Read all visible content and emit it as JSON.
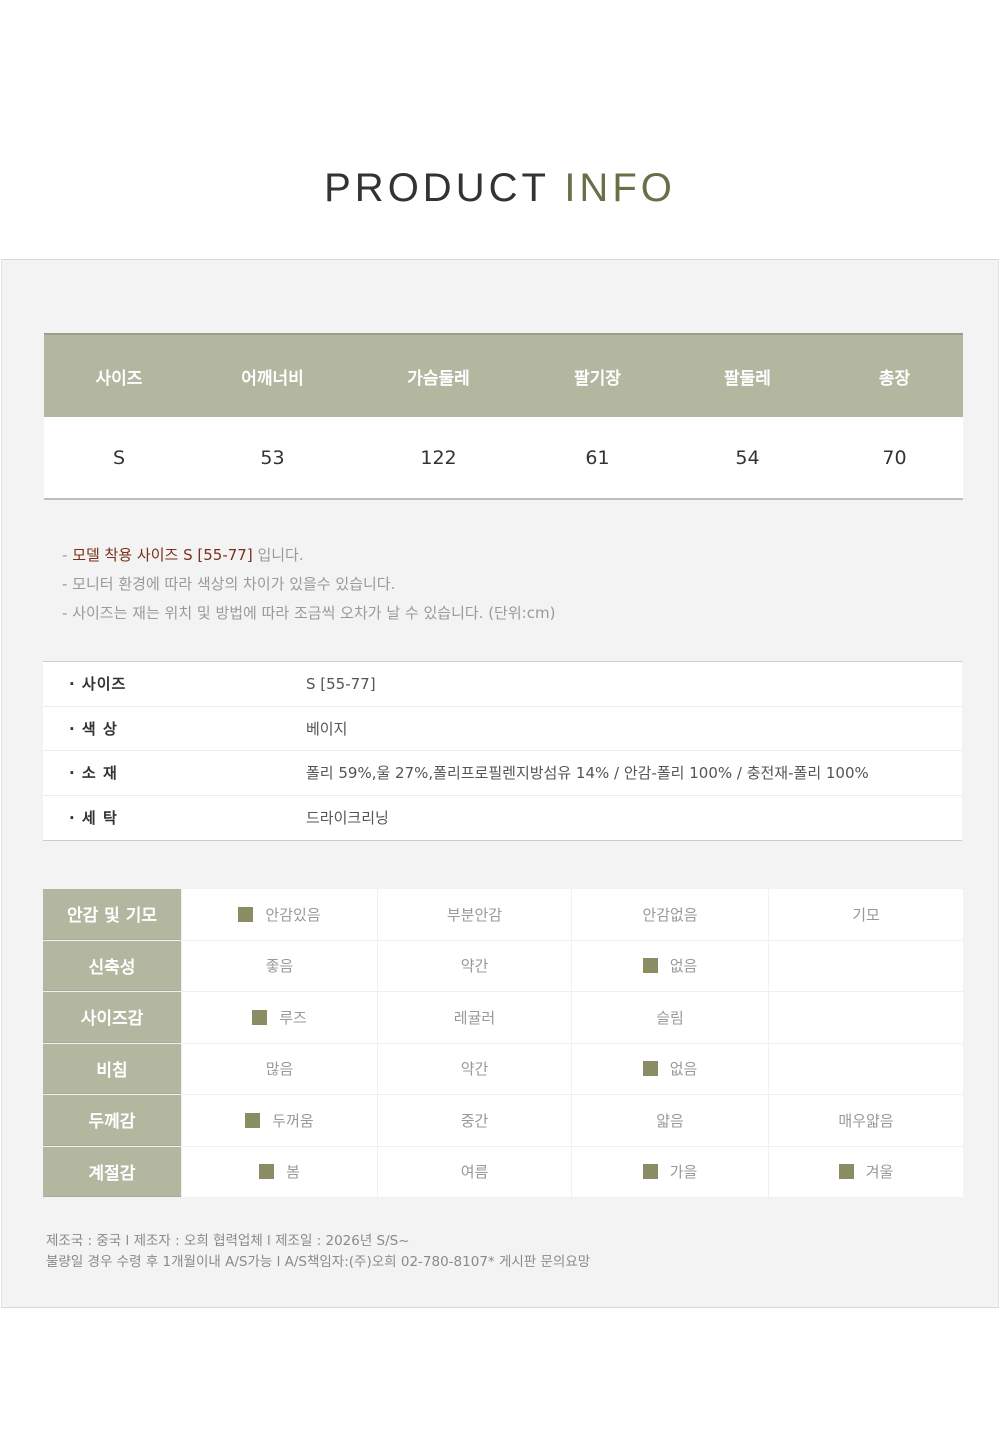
{
  "title": {
    "main": "PRODUCT",
    "accent": "INFO"
  },
  "size_table": {
    "headers": [
      "사이즈",
      "어깨너비",
      "가슴둘레",
      "팔기장",
      "팔둘레",
      "총장"
    ],
    "row": [
      "S",
      "53",
      "122",
      "61",
      "54",
      "70"
    ]
  },
  "notes": {
    "n1_prefix": "- ",
    "n1_highlight": "모델 착용 사이즈  S [55-77]",
    "n1_suffix": "  입니다.",
    "n2": "- 모니터 환경에 따라 색상의 차이가 있을수 있습니다.",
    "n3": "- 사이즈는 재는 위치 및 방법에 따라 조금씩 오차가 날 수 있습니다. (단위:cm)"
  },
  "info": [
    {
      "label": "·  사이즈",
      "value": "S [55-77]"
    },
    {
      "label": "·  색   상",
      "value": "베이지"
    },
    {
      "label": "·  소   재",
      "value": "폴리 59%,울 27%,폴리프로필렌지방섬유 14% / 안감-폴리 100% / 충전재-폴리 100%"
    },
    {
      "label": "·  세   탁",
      "value": "드라이크리닝"
    }
  ],
  "attributes": [
    {
      "label": "안감 및 기모",
      "options": [
        {
          "text": "안감있음",
          "checked": true
        },
        {
          "text": "부분안감",
          "checked": false
        },
        {
          "text": "안감없음",
          "checked": false
        },
        {
          "text": "기모",
          "checked": false
        }
      ]
    },
    {
      "label": "신축성",
      "options": [
        {
          "text": "좋음",
          "checked": false
        },
        {
          "text": "약간",
          "checked": false
        },
        {
          "text": "없음",
          "checked": true
        },
        {
          "text": "",
          "checked": false
        }
      ]
    },
    {
      "label": "사이즈감",
      "options": [
        {
          "text": "루즈",
          "checked": true
        },
        {
          "text": "레귤러",
          "checked": false
        },
        {
          "text": "슬림",
          "checked": false
        },
        {
          "text": "",
          "checked": false
        }
      ]
    },
    {
      "label": "비침",
      "options": [
        {
          "text": "많음",
          "checked": false
        },
        {
          "text": "약간",
          "checked": false
        },
        {
          "text": "없음",
          "checked": true
        },
        {
          "text": "",
          "checked": false
        }
      ]
    },
    {
      "label": "두께감",
      "options": [
        {
          "text": "두꺼움",
          "checked": true
        },
        {
          "text": "중간",
          "checked": false
        },
        {
          "text": "얇음",
          "checked": false
        },
        {
          "text": "매우얇음",
          "checked": false
        }
      ]
    },
    {
      "label": "계절감",
      "options": [
        {
          "text": "봄",
          "checked": true
        },
        {
          "text": "여름",
          "checked": false
        },
        {
          "text": "가을",
          "checked": true
        },
        {
          "text": "겨울",
          "checked": true
        }
      ]
    }
  ],
  "footer": {
    "line1": "제조국 :  중국  l  제조자 :  오희 협력업체  l  제조일 : 2026년 S/S~",
    "line2": "불량일 경우 수령 후 1개월이내 A/S가능  l  A/S책임자:(주)오희 02-780-8107* 게시판 문의요망"
  },
  "colors": {
    "header_bg": "#b3b7a0",
    "check": "#8a8d64",
    "accent": "#6b6f48",
    "highlight": "#7a2f1a"
  }
}
